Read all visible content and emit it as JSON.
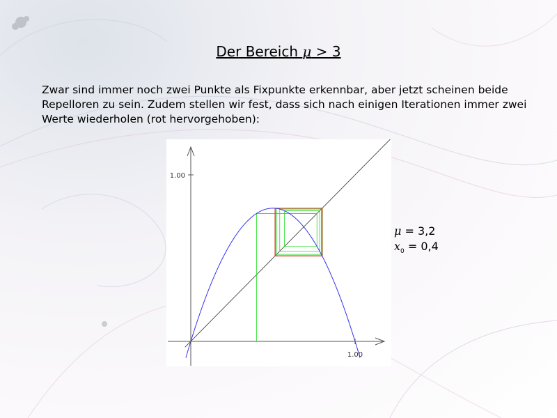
{
  "slide": {
    "title_prefix": "Der Bereich ",
    "title_symbol": "μ",
    "title_suffix": " > 3",
    "paragraph": "Zwar sind immer noch zwei Punkte als Fixpunkte erkennbar, aber jetzt scheinen beide Repelloren zu sein. Zudem stellen wir fest, dass sich nach einigen Iterationen immer zwei Werte wiederholen (rot hervorgehoben):"
  },
  "params": {
    "mu_symbol": "μ",
    "mu_value": " = 3,2",
    "x_symbol": "x",
    "x_sub": "0",
    "x_value": " = 0,4"
  },
  "chart_data": {
    "type": "line",
    "title": "",
    "xlabel": "",
    "ylabel": "",
    "x_tick_label": "1.00",
    "y_tick_label": "1.00",
    "xlim": [
      -0.03,
      1.08
    ],
    "ylim": [
      -0.08,
      1.08
    ],
    "grid": false,
    "mu": 3.2,
    "x0": 0.4,
    "iterations": 40,
    "series": [
      {
        "role": "logistic-curve",
        "color": "#3333ee"
      },
      {
        "role": "diagonal",
        "color": "#444444"
      },
      {
        "role": "cobweb",
        "color": "#22dd22"
      },
      {
        "role": "two-cycle",
        "color": "#ee2222",
        "values": [
          0.513,
          0.7995
        ]
      }
    ]
  }
}
